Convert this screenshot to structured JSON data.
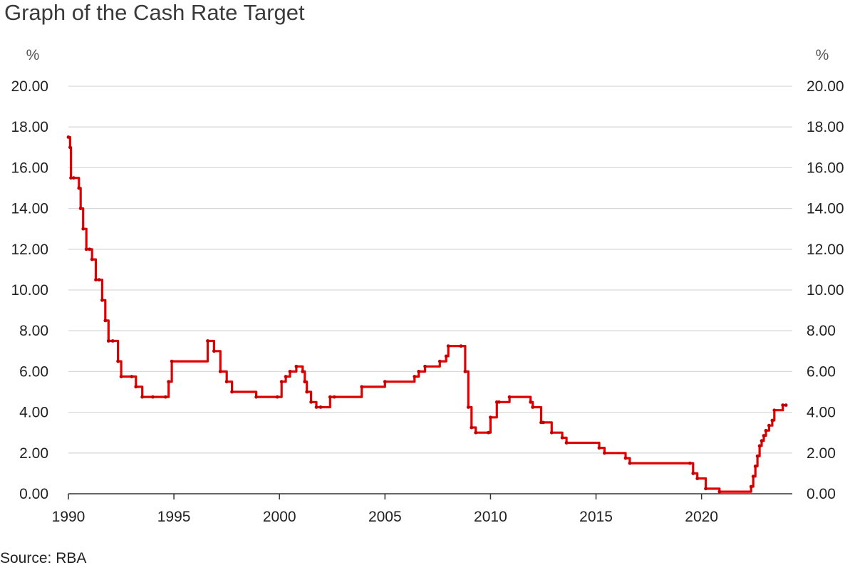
{
  "title": "Graph of the Cash Rate Target",
  "source": "Source: RBA",
  "chart_data": {
    "type": "line",
    "title": "Graph of the Cash Rate Target",
    "unit_label": "%",
    "xlabel": "",
    "ylabel": "%",
    "xlim": [
      1990,
      2024.3
    ],
    "ylim": [
      0,
      20
    ],
    "x_ticks": [
      "1990",
      "1995",
      "2000",
      "2005",
      "2010",
      "2015",
      "2020"
    ],
    "y_ticks": [
      "0.00",
      "2.00",
      "4.00",
      "6.00",
      "8.00",
      "10.00",
      "12.00",
      "14.00",
      "16.00",
      "18.00",
      "20.00"
    ],
    "grid": "horizontal",
    "dual_y_axis": true,
    "line_color": "#e00000",
    "series": [
      {
        "x": [
          1990.0,
          1990.08,
          1990.12,
          1990.25,
          1990.5,
          1990.58,
          1990.7,
          1990.85,
          1991.0,
          1991.12,
          1991.3,
          1991.45,
          1991.6,
          1991.75,
          1991.9,
          1992.1,
          1992.35,
          1992.5,
          1993.0,
          1993.2,
          1993.5,
          1994.0,
          1994.6,
          1994.75,
          1994.9,
          1996.6,
          1996.9,
          1997.2,
          1997.5,
          1997.75,
          1998.9,
          1999.9,
          2000.1,
          2000.3,
          2000.5,
          2000.8,
          2001.1,
          2001.2,
          2001.3,
          2001.5,
          2001.75,
          2001.95,
          2002.4,
          2002.6,
          2003.9,
          2005.0,
          2006.4,
          2006.6,
          2006.9,
          2007.6,
          2007.9,
          2008.0,
          2008.6,
          2008.8,
          2008.95,
          2009.1,
          2009.3,
          2009.9,
          2010.0,
          2010.3,
          2010.4,
          2010.9,
          2011.9,
          2012.0,
          2012.4,
          2012.5,
          2012.9,
          2013.4,
          2013.6,
          2015.15,
          2015.4,
          2016.4,
          2016.6,
          2019.45,
          2019.6,
          2019.8,
          2020.2,
          2020.85,
          2022.35,
          2022.45,
          2022.55,
          2022.65,
          2022.75,
          2022.85,
          2022.95,
          2023.05,
          2023.2,
          2023.35,
          2023.45,
          2023.85,
          2024.0
        ],
        "values": [
          17.5,
          17.0,
          15.5,
          15.5,
          15.0,
          14.0,
          13.0,
          12.0,
          12.0,
          11.5,
          10.5,
          10.5,
          9.5,
          8.5,
          7.5,
          7.5,
          6.5,
          5.75,
          5.75,
          5.25,
          4.75,
          4.75,
          4.75,
          5.5,
          6.5,
          7.5,
          7.0,
          6.0,
          5.5,
          5.0,
          4.75,
          4.75,
          5.5,
          5.75,
          6.0,
          6.25,
          6.0,
          5.5,
          5.0,
          4.5,
          4.25,
          4.25,
          4.75,
          4.75,
          5.25,
          5.5,
          5.75,
          6.0,
          6.25,
          6.5,
          6.75,
          7.25,
          7.25,
          6.0,
          4.25,
          3.25,
          3.0,
          3.0,
          3.75,
          4.5,
          4.5,
          4.75,
          4.5,
          4.25,
          3.5,
          3.5,
          3.0,
          2.75,
          2.5,
          2.25,
          2.0,
          1.75,
          1.5,
          1.5,
          1.0,
          0.75,
          0.25,
          0.1,
          0.35,
          0.85,
          1.35,
          1.85,
          2.35,
          2.6,
          2.85,
          3.1,
          3.35,
          3.6,
          4.1,
          4.35,
          4.35
        ]
      }
    ]
  }
}
